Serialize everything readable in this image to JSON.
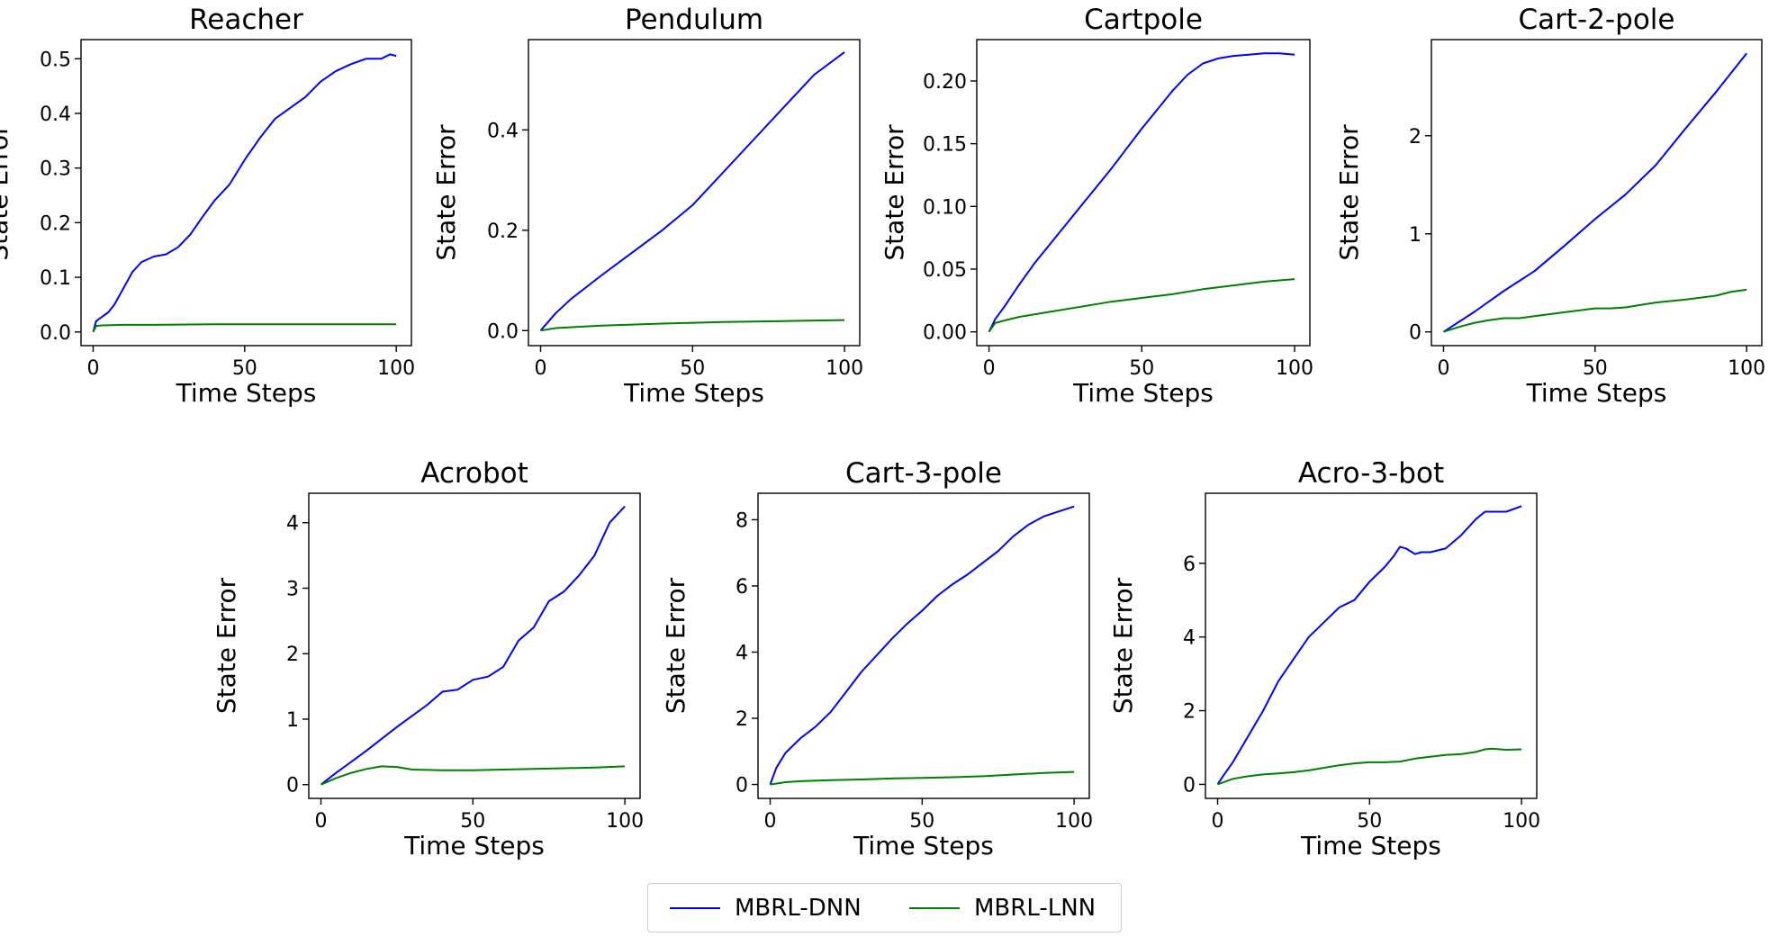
{
  "legend": {
    "dnn_label": "MBRL-DNN",
    "lnn_label": "MBRL-LNN",
    "dnn_color": "#0000ff",
    "lnn_color": "#008000"
  },
  "chart_data": [
    {
      "type": "line",
      "title": "Reacher",
      "xlabel": "Time Steps",
      "ylabel": "State Error",
      "xlim": [
        -4,
        105
      ],
      "ylim": [
        -0.025,
        0.535
      ],
      "xticks": [
        "0",
        "50",
        "100"
      ],
      "yticks": [
        "0.0",
        "0.1",
        "0.2",
        "0.3",
        "0.4",
        "0.5"
      ],
      "series": [
        {
          "name": "MBRL-DNN",
          "x": [
            0,
            1,
            3,
            5,
            7,
            10,
            13,
            16,
            20,
            24,
            28,
            32,
            36,
            40,
            45,
            50,
            55,
            60,
            65,
            70,
            75,
            80,
            85,
            90,
            95,
            98,
            100
          ],
          "y": [
            0.0,
            0.02,
            0.028,
            0.036,
            0.05,
            0.08,
            0.11,
            0.128,
            0.138,
            0.142,
            0.155,
            0.178,
            0.21,
            0.24,
            0.27,
            0.315,
            0.355,
            0.39,
            0.41,
            0.43,
            0.458,
            0.477,
            0.49,
            0.5,
            0.5,
            0.508,
            0.505
          ]
        },
        {
          "name": "MBRL-LNN",
          "x": [
            0,
            1,
            3,
            10,
            20,
            40,
            60,
            80,
            100
          ],
          "y": [
            0.0,
            0.011,
            0.012,
            0.013,
            0.013,
            0.014,
            0.014,
            0.014,
            0.014
          ]
        }
      ]
    },
    {
      "type": "line",
      "title": "Pendulum",
      "xlabel": "Time Steps",
      "ylabel": "State Error",
      "xlim": [
        -4,
        105
      ],
      "ylim": [
        -0.03,
        0.58
      ],
      "xticks": [
        "0",
        "50",
        "100"
      ],
      "yticks": [
        "0.0",
        "0.2",
        "0.4"
      ],
      "series": [
        {
          "name": "MBRL-DNN",
          "x": [
            0,
            5,
            10,
            20,
            30,
            40,
            50,
            60,
            70,
            80,
            90,
            100
          ],
          "y": [
            0.0,
            0.035,
            0.063,
            0.11,
            0.155,
            0.2,
            0.25,
            0.315,
            0.38,
            0.445,
            0.51,
            0.555
          ]
        },
        {
          "name": "MBRL-LNN",
          "x": [
            0,
            5,
            20,
            40,
            60,
            80,
            100
          ],
          "y": [
            0.0,
            0.005,
            0.01,
            0.014,
            0.017,
            0.019,
            0.021
          ]
        }
      ]
    },
    {
      "type": "line",
      "title": "Cartpole",
      "xlabel": "Time Steps",
      "ylabel": "State Error",
      "xlim": [
        -4,
        105
      ],
      "ylim": [
        -0.011,
        0.233
      ],
      "xticks": [
        "0",
        "50",
        "100"
      ],
      "yticks": [
        "0.00",
        "0.05",
        "0.10",
        "0.15",
        "0.20"
      ],
      "series": [
        {
          "name": "MBRL-DNN",
          "x": [
            0,
            2,
            5,
            10,
            15,
            20,
            25,
            30,
            35,
            40,
            45,
            50,
            55,
            60,
            65,
            70,
            75,
            80,
            85,
            90,
            95,
            100
          ],
          "y": [
            0.0,
            0.01,
            0.02,
            0.038,
            0.055,
            0.07,
            0.085,
            0.1,
            0.115,
            0.13,
            0.146,
            0.162,
            0.177,
            0.192,
            0.205,
            0.214,
            0.218,
            0.22,
            0.221,
            0.222,
            0.222,
            0.221
          ]
        },
        {
          "name": "MBRL-LNN",
          "x": [
            0,
            2,
            5,
            10,
            20,
            30,
            40,
            50,
            60,
            70,
            80,
            90,
            95,
            100
          ],
          "y": [
            0.0,
            0.007,
            0.009,
            0.012,
            0.016,
            0.02,
            0.024,
            0.027,
            0.03,
            0.034,
            0.037,
            0.04,
            0.041,
            0.042
          ]
        }
      ]
    },
    {
      "type": "line",
      "title": "Cart-2-pole",
      "xlabel": "Time Steps",
      "ylabel": "State Error",
      "xlim": [
        -4,
        105
      ],
      "ylim": [
        -0.14,
        2.98
      ],
      "xticks": [
        "0",
        "50",
        "100"
      ],
      "yticks": [
        "0",
        "1",
        "2"
      ],
      "series": [
        {
          "name": "MBRL-DNN",
          "x": [
            0,
            10,
            20,
            30,
            40,
            50,
            60,
            70,
            80,
            90,
            100
          ],
          "y": [
            0.0,
            0.2,
            0.42,
            0.62,
            0.88,
            1.15,
            1.4,
            1.7,
            2.08,
            2.45,
            2.84
          ]
        },
        {
          "name": "MBRL-LNN",
          "x": [
            0,
            5,
            10,
            15,
            20,
            25,
            30,
            40,
            50,
            55,
            60,
            70,
            80,
            90,
            95,
            100
          ],
          "y": [
            0.0,
            0.05,
            0.09,
            0.12,
            0.14,
            0.14,
            0.16,
            0.2,
            0.24,
            0.24,
            0.25,
            0.3,
            0.33,
            0.37,
            0.41,
            0.43
          ]
        }
      ]
    },
    {
      "type": "line",
      "title": "Acrobot",
      "xlabel": "Time Steps",
      "ylabel": "State Error",
      "xlim": [
        -4,
        105
      ],
      "ylim": [
        -0.21,
        4.45
      ],
      "xticks": [
        "0",
        "50",
        "100"
      ],
      "yticks": [
        "0",
        "1",
        "2",
        "3",
        "4"
      ],
      "series": [
        {
          "name": "MBRL-DNN",
          "x": [
            0,
            5,
            10,
            15,
            20,
            25,
            30,
            35,
            40,
            45,
            50,
            55,
            60,
            65,
            70,
            75,
            80,
            85,
            90,
            95,
            100
          ],
          "y": [
            0.0,
            0.18,
            0.35,
            0.52,
            0.7,
            0.88,
            1.05,
            1.22,
            1.42,
            1.45,
            1.6,
            1.65,
            1.8,
            2.2,
            2.4,
            2.8,
            2.95,
            3.2,
            3.5,
            4.0,
            4.25
          ]
        },
        {
          "name": "MBRL-LNN",
          "x": [
            0,
            5,
            10,
            15,
            20,
            25,
            30,
            40,
            50,
            60,
            70,
            80,
            90,
            100
          ],
          "y": [
            0.0,
            0.1,
            0.18,
            0.24,
            0.28,
            0.27,
            0.23,
            0.22,
            0.22,
            0.23,
            0.24,
            0.25,
            0.26,
            0.28
          ]
        }
      ]
    },
    {
      "type": "line",
      "title": "Cart-3-pole",
      "xlabel": "Time Steps",
      "ylabel": "State Error",
      "xlim": [
        -4,
        105
      ],
      "ylim": [
        -0.42,
        8.8
      ],
      "xticks": [
        "0",
        "50",
        "100"
      ],
      "yticks": [
        "0",
        "2",
        "4",
        "6",
        "8"
      ],
      "series": [
        {
          "name": "MBRL-DNN",
          "x": [
            0,
            2,
            5,
            10,
            15,
            20,
            25,
            30,
            35,
            40,
            45,
            50,
            55,
            60,
            65,
            70,
            75,
            80,
            85,
            90,
            95,
            100
          ],
          "y": [
            0.0,
            0.5,
            0.95,
            1.4,
            1.75,
            2.2,
            2.8,
            3.4,
            3.9,
            4.4,
            4.85,
            5.25,
            5.7,
            6.05,
            6.35,
            6.7,
            7.05,
            7.5,
            7.85,
            8.1,
            8.25,
            8.4
          ]
        },
        {
          "name": "MBRL-LNN",
          "x": [
            0,
            5,
            10,
            20,
            30,
            40,
            50,
            60,
            70,
            80,
            90,
            100
          ],
          "y": [
            0.0,
            0.07,
            0.1,
            0.13,
            0.15,
            0.18,
            0.2,
            0.22,
            0.25,
            0.3,
            0.35,
            0.38
          ]
        }
      ]
    },
    {
      "type": "line",
      "title": "Acro-3-bot",
      "xlabel": "Time Steps",
      "ylabel": "State Error",
      "xlim": [
        -4,
        105
      ],
      "ylim": [
        -0.38,
        7.9
      ],
      "xticks": [
        "0",
        "50",
        "100"
      ],
      "yticks": [
        "0",
        "2",
        "4",
        "6"
      ],
      "series": [
        {
          "name": "MBRL-DNN",
          "x": [
            0,
            2,
            5,
            10,
            15,
            20,
            25,
            30,
            35,
            40,
            45,
            50,
            55,
            58,
            60,
            62,
            65,
            67,
            70,
            75,
            80,
            85,
            88,
            90,
            95,
            100
          ],
          "y": [
            0.0,
            0.25,
            0.6,
            1.3,
            2.0,
            2.8,
            3.4,
            4.0,
            4.4,
            4.8,
            5.0,
            5.5,
            5.9,
            6.2,
            6.45,
            6.4,
            6.25,
            6.3,
            6.3,
            6.4,
            6.75,
            7.2,
            7.4,
            7.4,
            7.4,
            7.55
          ]
        },
        {
          "name": "MBRL-LNN",
          "x": [
            0,
            5,
            10,
            15,
            20,
            25,
            30,
            35,
            40,
            45,
            50,
            55,
            60,
            65,
            70,
            75,
            80,
            85,
            88,
            90,
            95,
            100
          ],
          "y": [
            0.0,
            0.15,
            0.22,
            0.27,
            0.3,
            0.33,
            0.38,
            0.45,
            0.52,
            0.57,
            0.6,
            0.6,
            0.62,
            0.7,
            0.75,
            0.8,
            0.82,
            0.88,
            0.95,
            0.97,
            0.94,
            0.95
          ]
        }
      ]
    }
  ]
}
